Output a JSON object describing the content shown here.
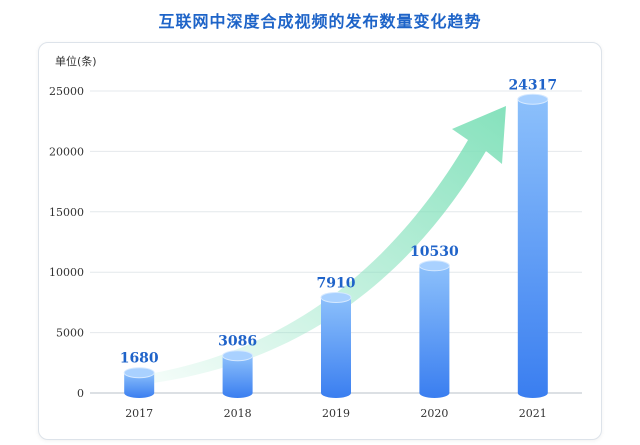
{
  "chart_data": {
    "type": "bar",
    "title": "互联网中深度合成视频的发布数量变化趋势",
    "unit_label": "单位(条)",
    "categories": [
      "2017",
      "2018",
      "2019",
      "2020",
      "2021"
    ],
    "values": [
      1680,
      3086,
      7910,
      10530,
      24317
    ],
    "value_labels": [
      "1680",
      "3086",
      "7910",
      "10530",
      "24317"
    ],
    "yticks": [
      "0",
      "5000",
      "10000",
      "15000",
      "20000",
      "25000"
    ],
    "ylim": [
      0,
      25000
    ],
    "grid": true,
    "legend": "none",
    "trend_arrow": true,
    "colors": {
      "title": "#1e64c8",
      "bar_top": "#8cc0fb",
      "bar_bottom": "#3a7ef0",
      "label": "#1f63c9",
      "arrow": "#7fe0b9"
    }
  }
}
